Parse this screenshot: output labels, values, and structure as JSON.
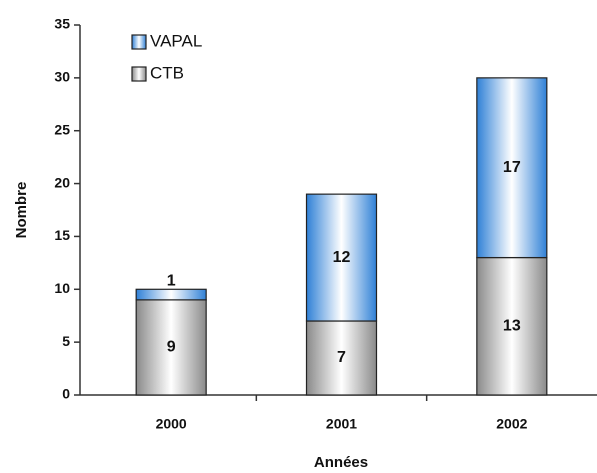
{
  "chart_data": {
    "type": "stacked_bar",
    "categories": [
      "2000",
      "2001",
      "2002"
    ],
    "series": [
      {
        "name": "CTB",
        "color": "#8a8a8a",
        "values": [
          9,
          7,
          13
        ]
      },
      {
        "name": "VAPAL",
        "color": "#2f80d6",
        "values": [
          1,
          12,
          17
        ]
      }
    ],
    "ylim": [
      0,
      35
    ],
    "yticks": [
      0,
      5,
      10,
      15,
      20,
      25,
      30,
      35
    ],
    "ylabel": "Nombre",
    "xlabel": "Années",
    "legend": "upper left"
  }
}
